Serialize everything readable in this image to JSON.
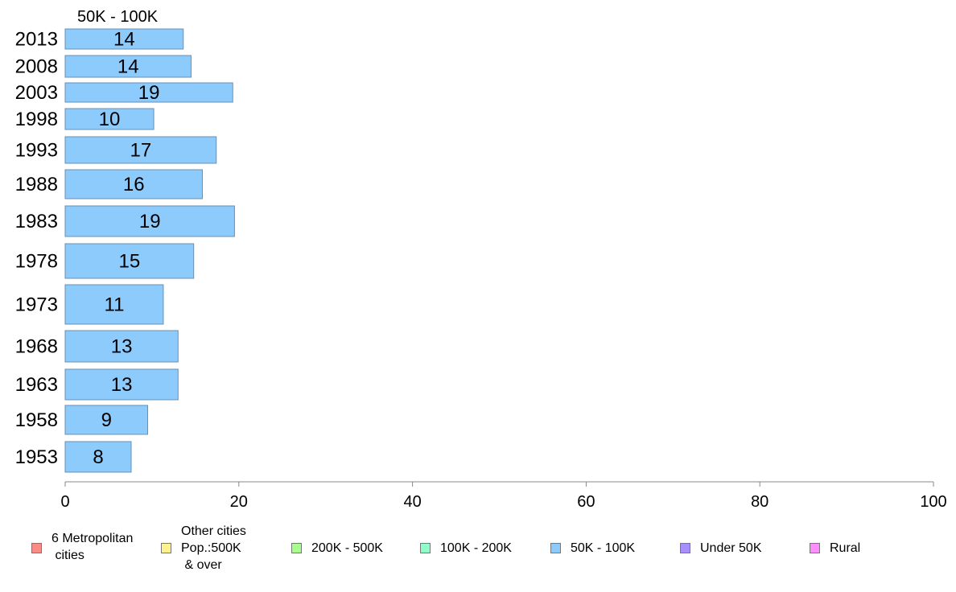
{
  "chart_data": {
    "type": "bar",
    "orientation": "horizontal",
    "title": "50K - 100K",
    "categories": [
      "2013",
      "2008",
      "2003",
      "1998",
      "1993",
      "1988",
      "1983",
      "1978",
      "1973",
      "1968",
      "1963",
      "1958",
      "1953"
    ],
    "values": [
      13.6,
      14.5,
      19.3,
      10.2,
      17.4,
      15.8,
      19.5,
      14.8,
      11.3,
      13.0,
      13.0,
      9.5,
      7.6
    ],
    "value_labels": [
      "14",
      "14",
      "19",
      "10",
      "17",
      "16",
      "19",
      "15",
      "11",
      "13",
      "13",
      "9",
      "8"
    ],
    "xlim": [
      0,
      100
    ],
    "xticks": [
      "0",
      "20",
      "40",
      "60",
      "80",
      "100"
    ],
    "bar_color": "#8ecbfd",
    "grid": false,
    "legend_position": "bottom",
    "legend": [
      {
        "label": "6 Metropolitan\n cities",
        "color": "#fb8c85"
      },
      {
        "label": "Other cities\nPop.:500K\n & over",
        "color": "#fef28c"
      },
      {
        "label": "200K - 500K",
        "color": "#a8fd8e"
      },
      {
        "label": "100K - 200K",
        "color": "#8efdc9"
      },
      {
        "label": "50K - 100K",
        "color": "#8ecbfd"
      },
      {
        "label": "Under 50K",
        "color": "#a98efd"
      },
      {
        "label": "Rural",
        "color": "#fd8efd"
      }
    ]
  }
}
